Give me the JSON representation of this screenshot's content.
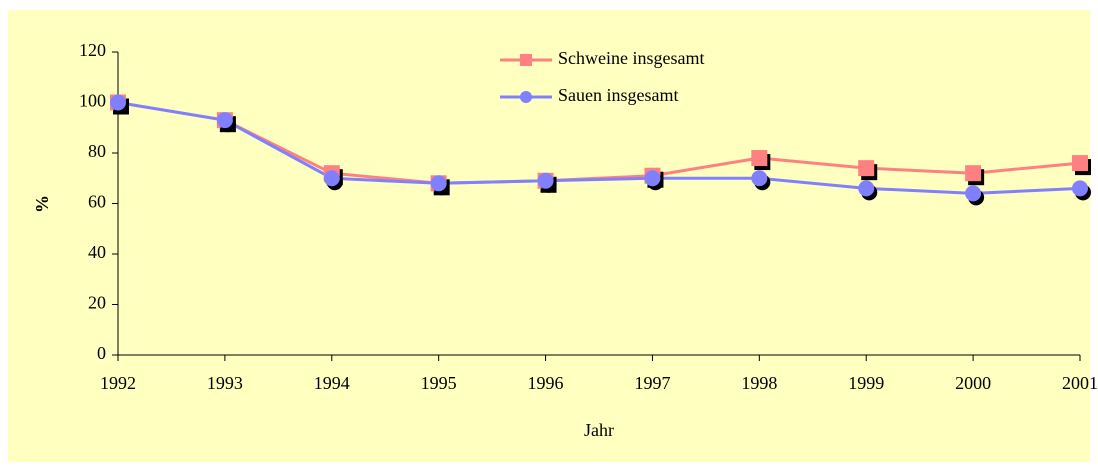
{
  "chart_data": {
    "type": "line",
    "categories": [
      "1992",
      "1993",
      "1994",
      "1995",
      "1996",
      "1997",
      "1998",
      "1999",
      "2000",
      "2001"
    ],
    "series": [
      {
        "name": "Schweine insgesamt",
        "color": "#ff8080",
        "marker": "square",
        "values": [
          100,
          93,
          72,
          68,
          69,
          71,
          78,
          74,
          72,
          76
        ]
      },
      {
        "name": "Sauen insgesamt",
        "color": "#8080ff",
        "marker": "circle",
        "values": [
          100,
          93,
          70,
          68,
          69,
          70,
          70,
          66,
          64,
          66
        ]
      }
    ],
    "ylim": [
      0,
      120
    ],
    "yticks": [
      0,
      20,
      40,
      60,
      80,
      100,
      120
    ],
    "ylabel": "%",
    "xlabel": "Jahr",
    "grid": false,
    "legend": "top"
  }
}
